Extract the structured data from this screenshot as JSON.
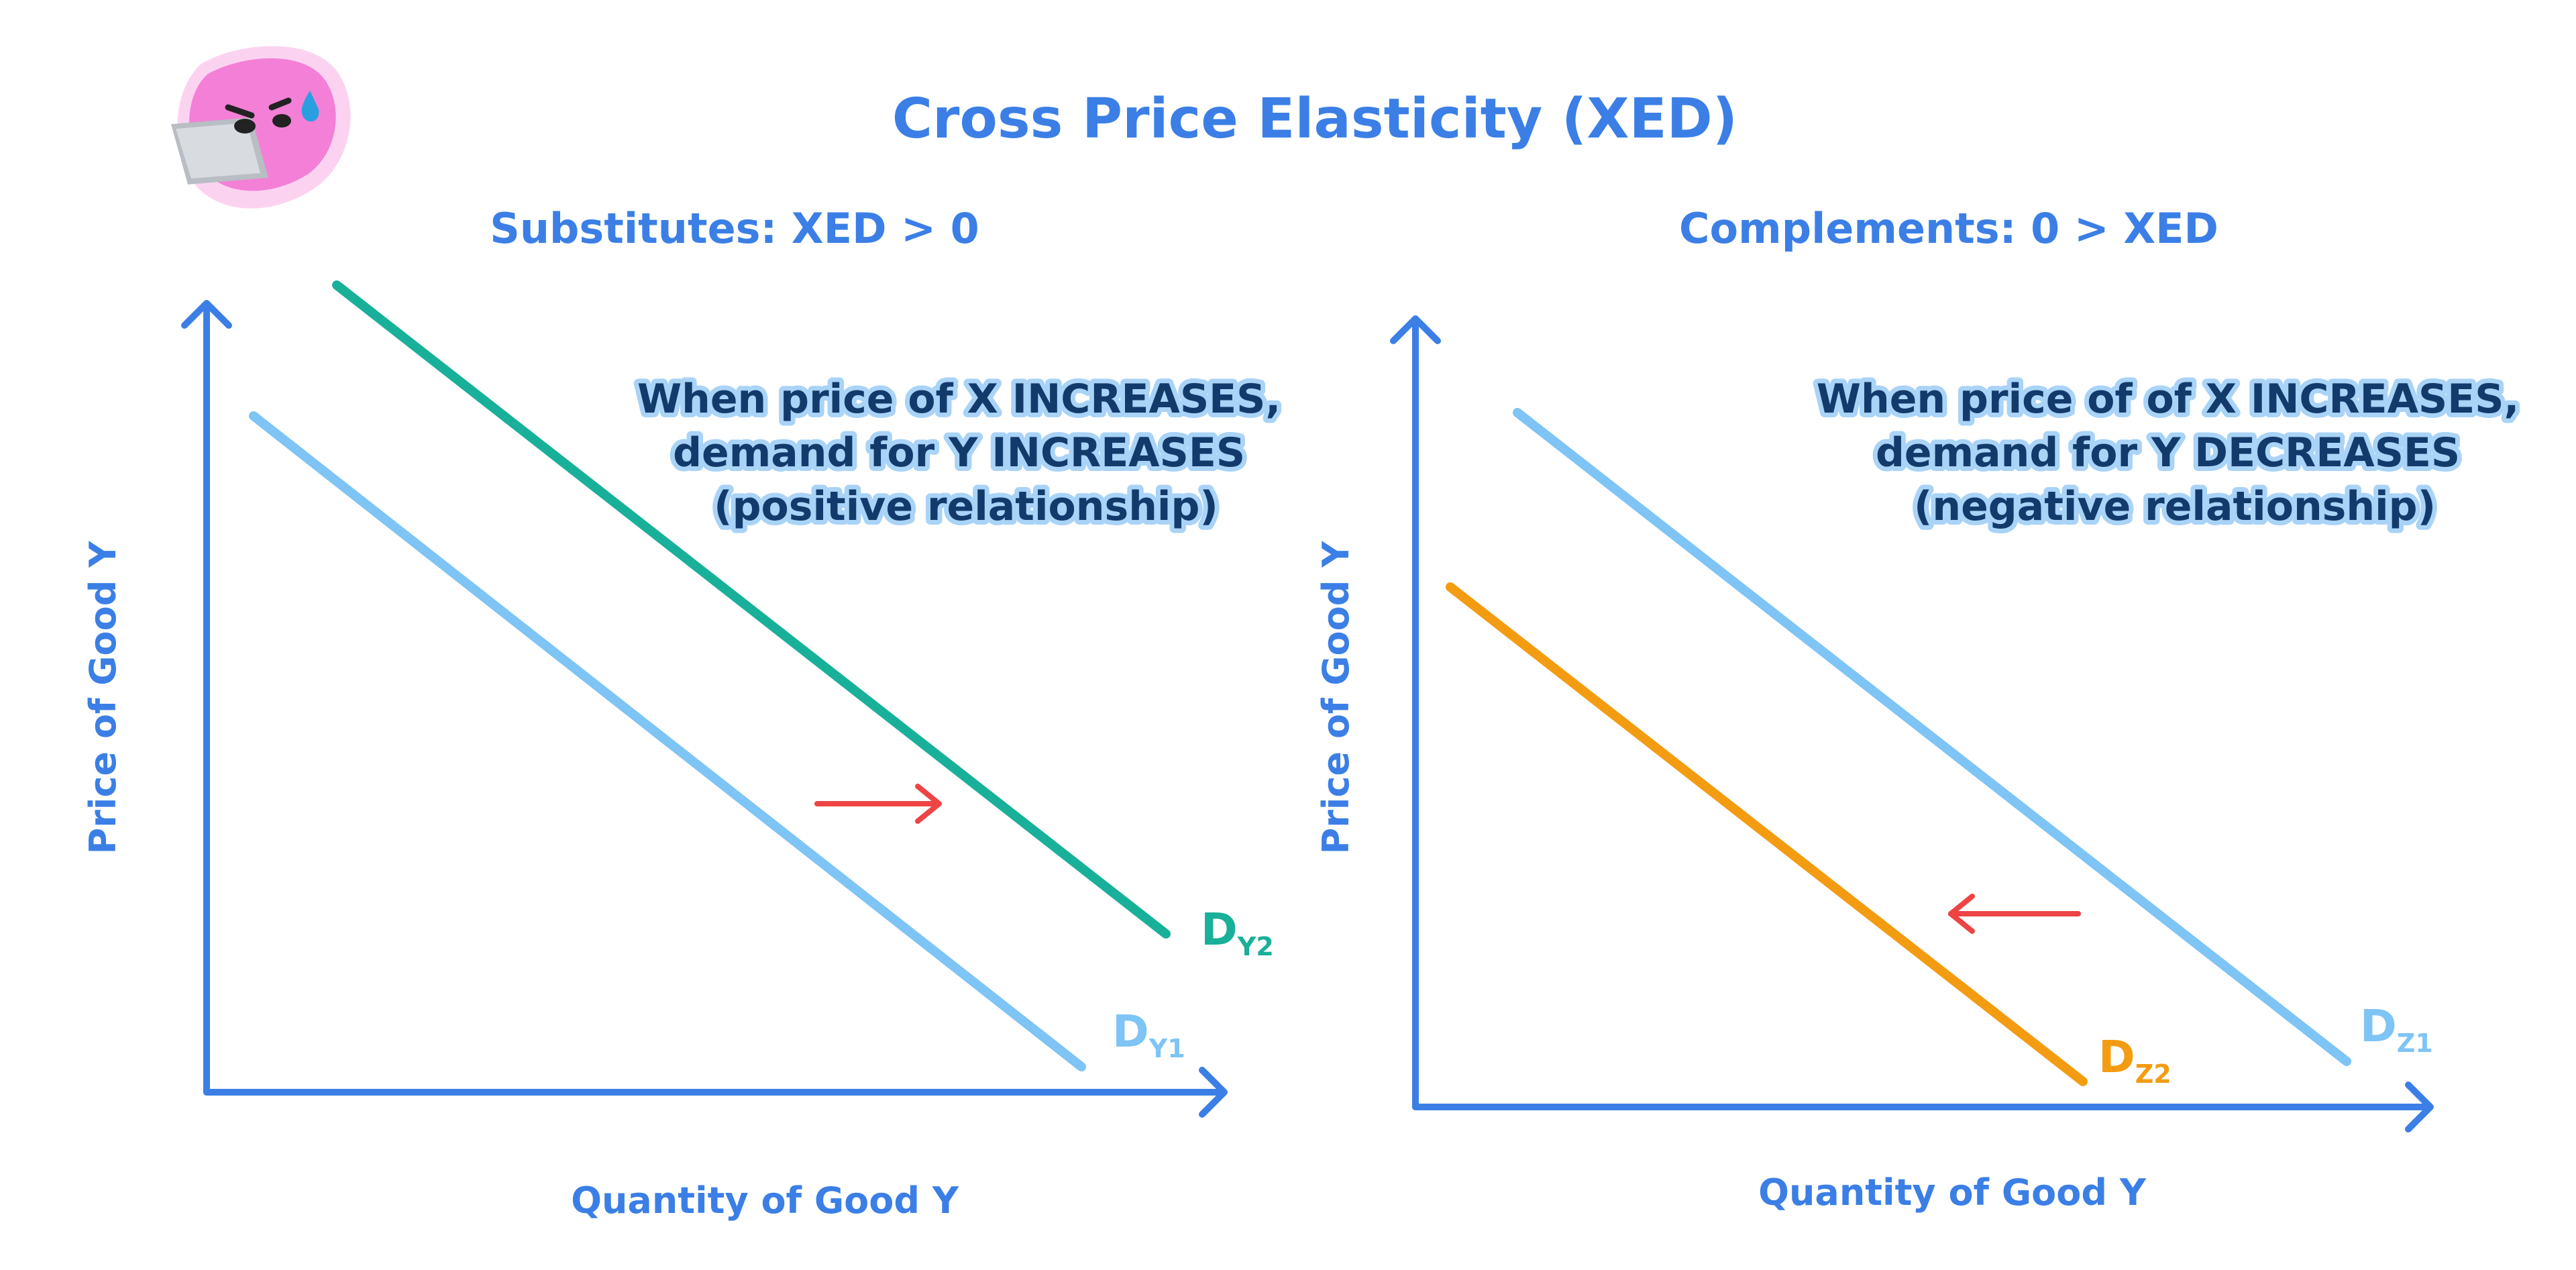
{
  "title": "Cross Price Elasticity (XED)",
  "colors": {
    "axis": "#3b7fe6",
    "light_blue": "#7ec4f5",
    "teal": "#19b09a",
    "orange": "#f39c12",
    "arrow_red": "#ee4444",
    "note_text": "#123a6b",
    "mascot_pink": "#f47fd6"
  },
  "mascot": {
    "icon": "pink-blob-mascot-with-laptop-icon"
  },
  "left_panel": {
    "subtitle": "Substitutes: XED > 0",
    "y_axis_label": "Price of Good Y",
    "x_axis_label": "Quantity of Good Y",
    "note_lines": [
      "When price of X INCREASES,",
      "demand for Y INCREASES",
      "(positive relationship)"
    ],
    "curves": [
      {
        "main": "D",
        "sub": "Y1",
        "color": "light_blue"
      },
      {
        "main": "D",
        "sub": "Y2",
        "color": "teal"
      }
    ],
    "shift_direction": "right"
  },
  "right_panel": {
    "subtitle": "Complements: 0 > XED",
    "y_axis_label": "Price of Good Y",
    "x_axis_label": "Quantity of Good Y",
    "note_lines": [
      "When price of of X INCREASES,",
      "demand for Y DECREASES",
      "(negative relationship)"
    ],
    "curves": [
      {
        "main": "D",
        "sub": "Z1",
        "color": "light_blue"
      },
      {
        "main": "D",
        "sub": "Z2",
        "color": "orange"
      }
    ],
    "shift_direction": "left"
  }
}
